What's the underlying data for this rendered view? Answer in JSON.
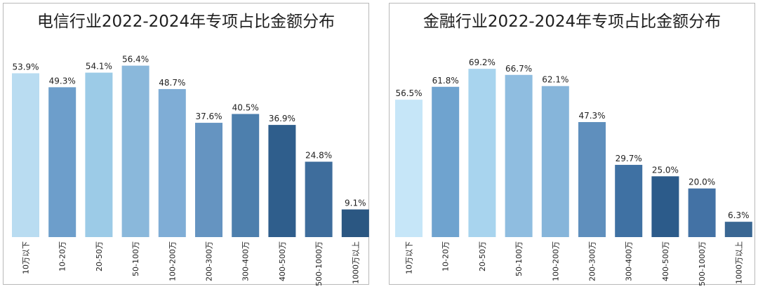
{
  "chart_data": [
    {
      "type": "bar",
      "title": "电信行业2022-2024年专项占比金额分布",
      "categories": [
        "10万以下",
        "10-20万",
        "20-50万",
        "50-100万",
        "100-200万",
        "200-300万",
        "300-400万",
        "400-500万",
        "500-1000万",
        "1000万以上"
      ],
      "values": [
        53.9,
        49.3,
        54.1,
        56.4,
        48.7,
        37.6,
        40.5,
        36.9,
        24.8,
        9.1
      ],
      "value_labels": [
        "53.9%",
        "49.3%",
        "54.1%",
        "56.4%",
        "48.7%",
        "37.6%",
        "40.5%",
        "36.9%",
        "24.8%",
        "9.1%"
      ],
      "colors": [
        "#b9dcf1",
        "#6d9ecb",
        "#9ccbe7",
        "#8ab8db",
        "#7fadd6",
        "#6594c1",
        "#4d7fad",
        "#2f5e8c",
        "#3e6d9c",
        "#2b5782"
      ],
      "ylim": [
        0,
        60
      ],
      "grid": false,
      "legend": "none"
    },
    {
      "type": "bar",
      "title": "金融行业2022-2024年专项占比金额分布",
      "categories": [
        "10万以下",
        "10-20万",
        "20-50万",
        "50-100万",
        "100-200万",
        "200-300万",
        "300-400万",
        "400-500万",
        "500-1000万",
        "1000万以上"
      ],
      "values": [
        56.5,
        61.8,
        69.2,
        66.7,
        62.1,
        47.3,
        29.7,
        25.0,
        20.0,
        6.3
      ],
      "value_labels": [
        "56.5%",
        "61.8%",
        "69.2%",
        "66.7%",
        "62.1%",
        "47.3%",
        "29.7%",
        "25.0%",
        "20.0%",
        "6.3%"
      ],
      "colors": [
        "#c6e6f8",
        "#6fa3cf",
        "#a8d4ee",
        "#8fbde0",
        "#86b5da",
        "#5f8fbd",
        "#3f71a3",
        "#2c5b8a",
        "#4372a5",
        "#3a6793"
      ],
      "ylim": [
        0,
        75
      ],
      "grid": false,
      "legend": "none"
    }
  ]
}
